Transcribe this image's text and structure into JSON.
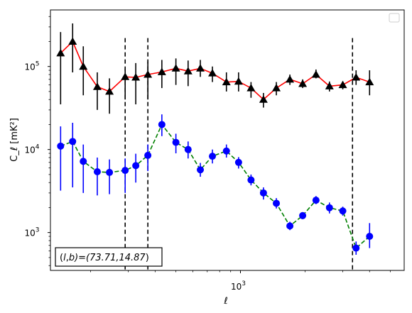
{
  "chart_data": {
    "type": "scatter",
    "title": "",
    "xlabel": "ℓ",
    "ylabel": "C_ℓ [mK²]",
    "xscale": "log",
    "yscale": "log",
    "xlim": [
      130,
      5800
    ],
    "ylim": [
      350,
      480000
    ],
    "x_tick_labels": [
      {
        "value": 1000,
        "label": "10",
        "exp": "3"
      }
    ],
    "y_tick_labels": [
      {
        "value": 1000,
        "label": "10",
        "exp": "3"
      },
      {
        "value": 10000,
        "label": "10",
        "exp": "4"
      },
      {
        "value": 100000,
        "label": "10",
        "exp": "5"
      }
    ],
    "vertical_lines": [
      290,
      370,
      3330
    ],
    "annotation": "(l, b)=(73.71,14.87)",
    "legend": "top-right (empty)",
    "series": [
      {
        "marker": "triangle",
        "marker_color": "#000000",
        "line_color": "#ff0000",
        "line_style": "solid",
        "errorbar_color": "#000000",
        "points": [
          {
            "x": 145,
            "y": 145000,
            "lo": 35000,
            "hi": 260000
          },
          {
            "x": 165,
            "y": 200000,
            "lo": 85000,
            "hi": 330000
          },
          {
            "x": 185,
            "y": 100000,
            "lo": 45000,
            "hi": 175000
          },
          {
            "x": 215,
            "y": 57000,
            "lo": 30000,
            "hi": 85000
          },
          {
            "x": 245,
            "y": 50000,
            "lo": 27000,
            "hi": 72000
          },
          {
            "x": 290,
            "y": 75000,
            "lo": 40000,
            "hi": 95000
          },
          {
            "x": 325,
            "y": 74000,
            "lo": 35000,
            "hi": 110000
          },
          {
            "x": 370,
            "y": 80000,
            "lo": 40000,
            "hi": 115000
          },
          {
            "x": 430,
            "y": 86000,
            "lo": 55000,
            "hi": 120000
          },
          {
            "x": 500,
            "y": 95000,
            "lo": 60000,
            "hi": 125000
          },
          {
            "x": 570,
            "y": 88000,
            "lo": 58000,
            "hi": 118000
          },
          {
            "x": 650,
            "y": 95000,
            "lo": 75000,
            "hi": 120000
          },
          {
            "x": 740,
            "y": 83000,
            "lo": 65000,
            "hi": 100000
          },
          {
            "x": 860,
            "y": 65000,
            "lo": 50000,
            "hi": 85000
          },
          {
            "x": 980,
            "y": 66000,
            "lo": 50000,
            "hi": 85000
          },
          {
            "x": 1120,
            "y": 55000,
            "lo": 42000,
            "hi": 65000
          },
          {
            "x": 1280,
            "y": 40000,
            "lo": 32000,
            "hi": 48000
          },
          {
            "x": 1470,
            "y": 55000,
            "lo": 45000,
            "hi": 65000
          },
          {
            "x": 1700,
            "y": 70000,
            "lo": 60000,
            "hi": 80000
          },
          {
            "x": 1950,
            "y": 62000,
            "lo": 55000,
            "hi": 70000
          },
          {
            "x": 2250,
            "y": 80000,
            "lo": 72000,
            "hi": 92000
          },
          {
            "x": 2600,
            "y": 58000,
            "lo": 50000,
            "hi": 66000
          },
          {
            "x": 3000,
            "y": 60000,
            "lo": 53000,
            "hi": 66000
          },
          {
            "x": 3460,
            "y": 74000,
            "lo": 60000,
            "hi": 90000
          },
          {
            "x": 4000,
            "y": 65000,
            "lo": 45000,
            "hi": 90000
          }
        ]
      },
      {
        "marker": "circle",
        "marker_color": "#0000ff",
        "line_color": "#008000",
        "line_style": "dashed",
        "errorbar_color": "#0000ff",
        "points": [
          {
            "x": 145,
            "y": 11000,
            "lo": 3200,
            "hi": 19000
          },
          {
            "x": 165,
            "y": 12500,
            "lo": 3500,
            "hi": 21000
          },
          {
            "x": 185,
            "y": 7200,
            "lo": 3000,
            "hi": 11500
          },
          {
            "x": 215,
            "y": 5400,
            "lo": 2800,
            "hi": 8000
          },
          {
            "x": 245,
            "y": 5300,
            "lo": 2900,
            "hi": 7600
          },
          {
            "x": 290,
            "y": 5600,
            "lo": 3000,
            "hi": 7800
          },
          {
            "x": 325,
            "y": 6400,
            "lo": 4000,
            "hi": 8900
          },
          {
            "x": 370,
            "y": 8500,
            "lo": 5500,
            "hi": 11500
          },
          {
            "x": 430,
            "y": 20000,
            "lo": 14500,
            "hi": 26500
          },
          {
            "x": 500,
            "y": 12200,
            "lo": 9000,
            "hi": 15500
          },
          {
            "x": 570,
            "y": 10000,
            "lo": 7800,
            "hi": 12500
          },
          {
            "x": 650,
            "y": 5700,
            "lo": 4700,
            "hi": 6900
          },
          {
            "x": 740,
            "y": 8300,
            "lo": 6800,
            "hi": 10000
          },
          {
            "x": 860,
            "y": 9600,
            "lo": 8000,
            "hi": 11500
          },
          {
            "x": 980,
            "y": 7000,
            "lo": 5900,
            "hi": 8100
          },
          {
            "x": 1120,
            "y": 4300,
            "lo": 3700,
            "hi": 5000
          },
          {
            "x": 1280,
            "y": 3000,
            "lo": 2500,
            "hi": 3500
          },
          {
            "x": 1470,
            "y": 2250,
            "lo": 1950,
            "hi": 2600
          },
          {
            "x": 1700,
            "y": 1200,
            "lo": 1070,
            "hi": 1350
          },
          {
            "x": 1950,
            "y": 1600,
            "lo": 1450,
            "hi": 1750
          },
          {
            "x": 2250,
            "y": 2450,
            "lo": 2200,
            "hi": 2750
          },
          {
            "x": 2600,
            "y": 1990,
            "lo": 1700,
            "hi": 2300
          },
          {
            "x": 3000,
            "y": 1820,
            "lo": 1600,
            "hi": 2050
          },
          {
            "x": 3460,
            "y": 650,
            "lo": 540,
            "hi": 780
          },
          {
            "x": 4000,
            "y": 900,
            "lo": 650,
            "hi": 1300
          }
        ]
      }
    ]
  }
}
